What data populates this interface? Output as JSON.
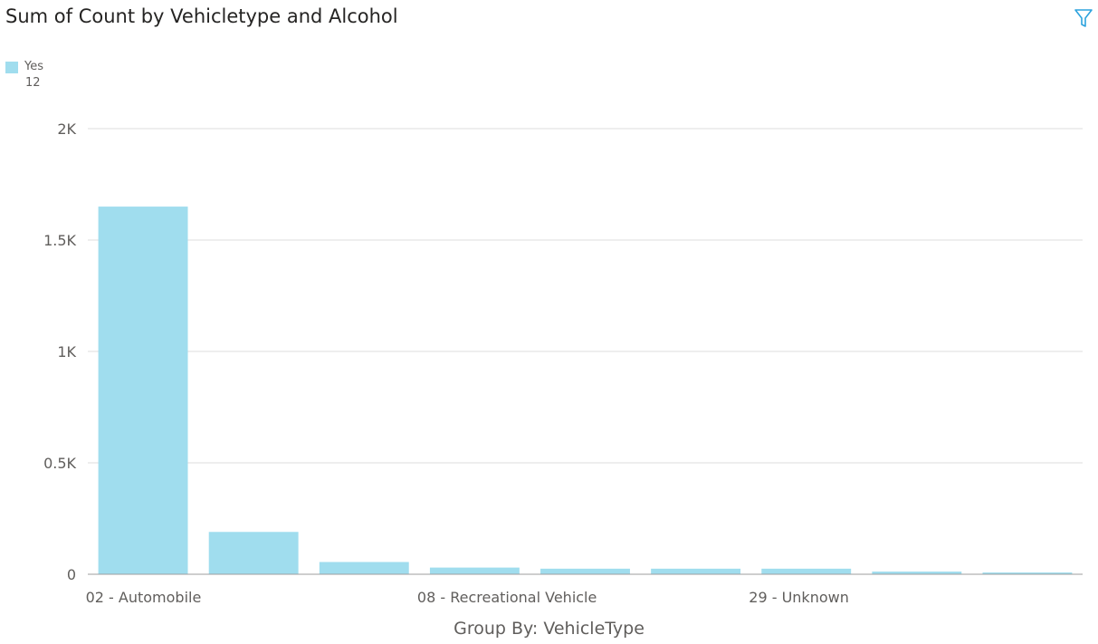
{
  "title": "Sum of Count by Vehicletype and Alcohol",
  "filter_icon": "filter-icon",
  "legend": {
    "label": "Yes",
    "value": "12",
    "color": "#a0ddee"
  },
  "x_axis_title": "Group By: VehicleType",
  "colors": {
    "bar": "#a0ddee",
    "grid": "#dcdcdc",
    "axis": "#9e9e9e",
    "tick_text": "#605e5c",
    "accent": "#2da3de"
  },
  "chart_data": {
    "type": "bar",
    "title": "Sum of Count by Vehicletype and Alcohol",
    "xlabel": "Group By: VehicleType",
    "ylabel": "",
    "ylim": [
      0,
      2000
    ],
    "yticks": [
      0,
      500,
      1000,
      1500,
      2000
    ],
    "ytick_labels": [
      "0",
      "0.5K",
      "1K",
      "1.5K",
      "2K"
    ],
    "categories": [
      "02 - Automobile",
      "",
      "",
      "08 - Recreational Vehicle",
      "",
      "",
      "29 - Unknown",
      "",
      ""
    ],
    "series": [
      {
        "name": "Yes",
        "values": [
          1650,
          190,
          55,
          30,
          25,
          25,
          25,
          12,
          8
        ]
      }
    ],
    "grid": true,
    "legend_position": "top-left"
  }
}
